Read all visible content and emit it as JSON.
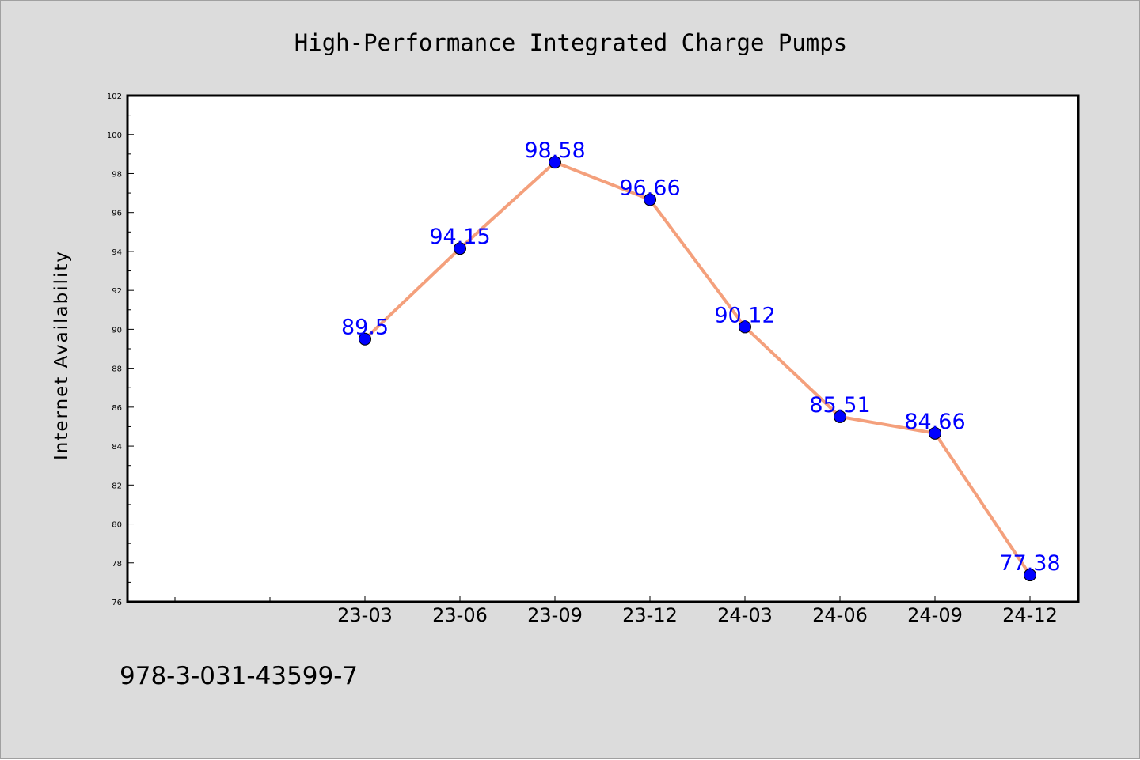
{
  "chart_data": {
    "type": "line",
    "title": "High-Performance Integrated Charge Pumps",
    "xlabel": "",
    "ylabel": "Internet Availability",
    "categories": [
      "23-03",
      "23-06",
      "23-09",
      "23-12",
      "24-03",
      "24-06",
      "24-09",
      "24-12"
    ],
    "series": [
      {
        "values": [
          89.5,
          94.15,
          98.58,
          96.66,
          90.12,
          85.51,
          84.66,
          77.38
        ],
        "data_labels": [
          "89.5",
          "94.15",
          "98.58",
          "96.66",
          "90.12",
          "85.51",
          "84.66",
          "77.38"
        ]
      }
    ],
    "ylim": [
      76,
      102
    ],
    "y_ticks": [
      "76",
      "78",
      "80",
      "82",
      "84",
      "86",
      "88",
      "90",
      "92",
      "94",
      "96",
      "98",
      "100",
      "102"
    ],
    "grid": false,
    "legend": "none",
    "colors": {
      "line": "#f4a07c",
      "marker": "#0000ff",
      "data_label": "#0000ff",
      "plot_background": "#ffffff",
      "figure_background": "#dcdcdc"
    }
  },
  "footer": {
    "isbn": "978-3-031-43599-7"
  }
}
